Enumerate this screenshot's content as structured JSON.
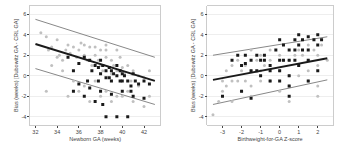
{
  "chart_data": [
    {
      "type": "scatter",
      "xlabel": "Newborn GA (weeks)",
      "ylabel": "Bias (weeks) [Dubowitz GA - CRL GA]",
      "xlim": [
        31.5,
        43.5
      ],
      "ylim": [
        -4.8,
        6.8
      ],
      "xticks": [
        32,
        34,
        36,
        38,
        40,
        42
      ],
      "yticks": [
        -4,
        -2,
        0,
        2,
        4,
        6
      ],
      "grid": "y",
      "series": [
        {
          "type": "line",
          "color": "#888888",
          "line_style": "solid",
          "x": [
            32.0,
            43.0
          ],
          "values": [
            5.5,
            1.8
          ]
        },
        {
          "type": "line",
          "color": "#888888",
          "line_style": "solid",
          "x": [
            32.0,
            43.0
          ],
          "values": [
            0.7,
            -2.8
          ]
        },
        {
          "type": "scatter",
          "color": "#c0c0c0",
          "marker": "circle",
          "x": [
            32.5,
            33.0,
            33.2,
            33.5,
            34.0,
            34.2,
            34.5,
            34.8,
            35.0,
            35.2,
            35.5,
            35.8,
            36.0,
            36.2,
            36.5,
            36.8,
            37.0,
            37.2,
            37.5,
            37.8,
            38.0,
            38.0,
            38.2,
            38.5,
            38.5,
            38.8,
            39.0,
            39.0,
            39.2,
            39.5,
            39.8,
            40.0,
            40.2,
            40.5,
            40.8,
            41.0,
            41.5,
            42.0,
            42.5,
            33.5,
            34.5,
            35.5,
            36.5,
            37.5,
            38.5,
            39.5,
            40.5,
            41.5,
            42.5,
            33.0,
            35.0,
            36.0,
            37.0,
            38.0,
            39.0,
            40.0,
            41.0,
            42.0,
            34.0,
            36.5,
            37.5,
            38.5,
            39.5
          ],
          "values": [
            4.2,
            3.8,
            2.5,
            2.8,
            3.5,
            2.0,
            1.5,
            2.5,
            3.0,
            2.2,
            2.8,
            1.8,
            2.5,
            3.2,
            2.0,
            1.5,
            2.8,
            1.0,
            2.0,
            1.5,
            2.5,
            1.0,
            0.5,
            1.8,
            2.5,
            0.8,
            1.5,
            0.2,
            1.0,
            0.5,
            1.8,
            0.8,
            0.2,
            1.0,
            -0.5,
            0.5,
            0.0,
            -0.2,
            0.5,
            1.0,
            0.5,
            -0.5,
            -1.0,
            -0.5,
            -1.5,
            -2.0,
            -1.5,
            -1.0,
            -2.0,
            -1.5,
            -2.0,
            -1.5,
            -2.5,
            -2.0,
            -2.5,
            -2.0,
            -2.5,
            -3.0,
            1.8,
            3.0,
            2.8,
            3.0,
            2.5
          ]
        },
        {
          "type": "scatter",
          "color": "#1a1a1a",
          "marker": "square",
          "x": [
            35.0,
            35.5,
            36.0,
            36.5,
            37.0,
            37.2,
            37.5,
            37.8,
            38.0,
            38.0,
            38.2,
            38.5,
            38.5,
            38.8,
            39.0,
            39.0,
            39.2,
            39.5,
            39.5,
            39.8,
            40.0,
            40.0,
            40.2,
            40.5,
            40.8,
            41.0,
            41.2,
            41.5,
            42.0,
            42.5,
            36.0,
            37.0,
            38.0,
            39.0,
            40.0,
            41.0,
            42.0,
            38.5,
            39.5,
            40.5,
            37.5,
            38.2,
            36.5,
            35.5,
            36.8,
            37.8,
            38.8,
            39.8,
            40.8
          ],
          "values": [
            1.8,
            0.5,
            1.2,
            1.8,
            1.5,
            0.5,
            1.0,
            0.8,
            1.5,
            0.2,
            1.0,
            0.5,
            -0.2,
            0.8,
            0.5,
            -0.5,
            0.2,
            1.0,
            0.0,
            0.5,
            0.2,
            -0.5,
            0.0,
            -0.5,
            -1.0,
            0.2,
            -0.5,
            -0.8,
            -0.5,
            -0.8,
            -0.8,
            -1.2,
            -1.5,
            -1.8,
            -1.5,
            -2.0,
            -2.2,
            -4.0,
            -4.0,
            -4.0,
            -2.5,
            -2.8,
            -2.0,
            -1.5,
            -0.5,
            -0.5,
            -0.2,
            -0.5,
            -1.5
          ]
        },
        {
          "type": "line",
          "color": "#1a1a1a",
          "line_style": "solid",
          "x": [
            32.0,
            43.0
          ],
          "values": [
            3.1,
            -0.5
          ]
        }
      ]
    },
    {
      "type": "scatter",
      "xlabel": "Birthweight-for-GA Z-score",
      "ylabel": "Bias (weeks) [Dubowitz GA - CRL GA]",
      "xlim": [
        -3.8,
        2.8
      ],
      "ylim": [
        -4.8,
        6.8
      ],
      "xticks": [
        -3,
        -2,
        -1,
        0,
        1,
        2
      ],
      "yticks": [
        -4,
        -2,
        0,
        2,
        4,
        6
      ],
      "grid": "y",
      "series": [
        {
          "type": "line",
          "color": "#888888",
          "line_style": "solid",
          "x": [
            -3.5,
            2.5
          ],
          "values": [
            2.0,
            3.8
          ]
        },
        {
          "type": "line",
          "color": "#888888",
          "line_style": "solid",
          "x": [
            -3.5,
            2.5
          ],
          "values": [
            -2.8,
            -0.4
          ]
        },
        {
          "type": "scatter",
          "color": "#c0c0c0",
          "marker": "circle",
          "x": [
            -3.5,
            -3.2,
            -3.0,
            -2.8,
            -2.5,
            -2.5,
            -2.2,
            -2.0,
            -2.0,
            -1.8,
            -1.5,
            -1.5,
            -1.2,
            -1.0,
            -1.0,
            -0.8,
            -0.5,
            -0.5,
            0.0,
            0.0,
            0.2,
            0.5,
            0.5,
            0.8,
            1.0,
            1.0,
            1.2,
            1.5,
            1.5,
            1.8,
            2.0,
            2.0,
            2.2,
            -2.8,
            -2.2,
            -1.8,
            -1.0,
            0.5,
            1.0,
            1.5,
            2.0,
            -1.5,
            -0.5,
            -3.0,
            -2.5,
            -1.5,
            0.0,
            0.5,
            1.5,
            2.0,
            2.5
          ],
          "values": [
            -3.8,
            -2.5,
            -1.5,
            -1.0,
            -0.5,
            -2.5,
            -0.5,
            0.5,
            -1.5,
            1.0,
            0.5,
            -1.0,
            1.5,
            0.5,
            -0.5,
            1.0,
            1.5,
            -0.5,
            2.0,
            0.5,
            1.5,
            1.5,
            0.0,
            2.0,
            2.5,
            1.0,
            2.0,
            3.0,
            1.5,
            2.5,
            2.0,
            1.0,
            3.0,
            0.5,
            1.5,
            -0.5,
            2.0,
            -1.0,
            0.0,
            -0.5,
            -1.0,
            2.5,
            2.5,
            -0.5,
            1.0,
            -2.0,
            -1.5,
            -2.5,
            0.5,
            -2.0,
            1.5
          ]
        },
        {
          "type": "scatter",
          "color": "#1a1a1a",
          "marker": "square",
          "x": [
            -2.5,
            -2.2,
            -2.0,
            -1.8,
            -1.5,
            -1.2,
            -1.0,
            -0.8,
            -0.5,
            0.0,
            0.0,
            0.2,
            0.5,
            0.5,
            0.8,
            1.0,
            1.0,
            1.2,
            1.5,
            1.5,
            1.8,
            2.0,
            2.0,
            2.2,
            -1.5,
            -1.0,
            -0.5,
            0.0,
            0.5,
            1.0,
            1.5,
            -0.5,
            0.0,
            0.5,
            -2.0,
            -1.5,
            0.5,
            1.5,
            2.0,
            -3.0,
            -1.2,
            0.8,
            1.2,
            -0.2,
            0.2,
            -0.8,
            -1.8,
            0.8
          ],
          "values": [
            1.5,
            2.0,
            1.0,
            2.0,
            1.5,
            2.0,
            1.5,
            2.0,
            1.0,
            3.5,
            1.5,
            3.0,
            2.5,
            1.5,
            3.5,
            4.0,
            3.0,
            3.5,
            3.8,
            2.5,
            3.5,
            4.0,
            3.0,
            3.5,
            0.5,
            0.0,
            0.5,
            0.5,
            0.0,
            1.0,
            1.5,
            -0.5,
            -0.5,
            -1.0,
            -1.5,
            -2.2,
            -2.0,
            -0.5,
            0.5,
            -2.0,
            0.5,
            1.5,
            2.5,
            2.5,
            1.5,
            1.5,
            1.2,
            2.5
          ]
        },
        {
          "type": "line",
          "color": "#1a1a1a",
          "line_style": "solid",
          "x": [
            -3.5,
            2.5
          ],
          "values": [
            -0.4,
            1.7
          ]
        }
      ]
    }
  ]
}
